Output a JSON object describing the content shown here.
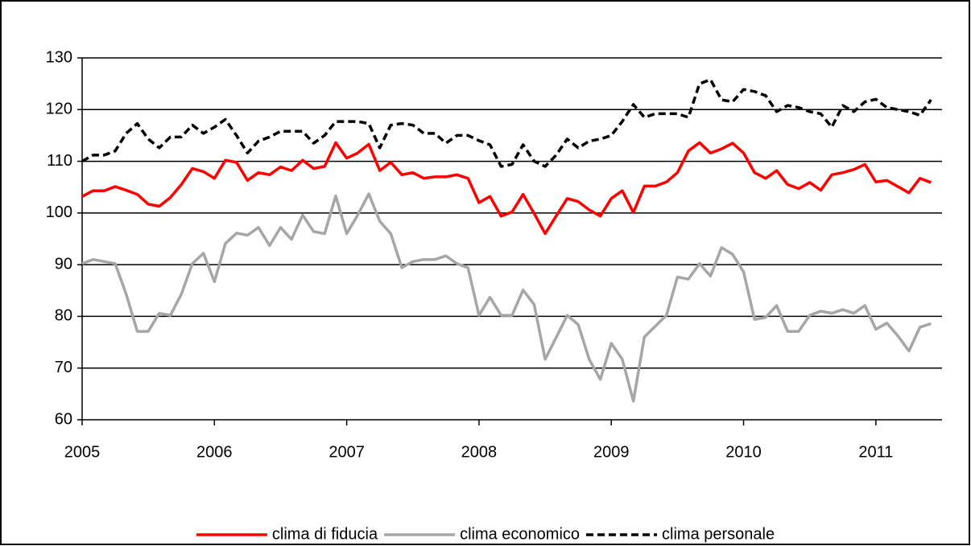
{
  "chart_data": {
    "type": "line",
    "x": [
      2005,
      2005.083,
      2005.167,
      2005.25,
      2005.333,
      2005.417,
      2005.5,
      2005.583,
      2005.667,
      2005.75,
      2005.833,
      2005.917,
      2006,
      2006.083,
      2006.167,
      2006.25,
      2006.333,
      2006.417,
      2006.5,
      2006.583,
      2006.667,
      2006.75,
      2006.833,
      2006.917,
      2007,
      2007.083,
      2007.167,
      2007.25,
      2007.333,
      2007.417,
      2007.5,
      2007.583,
      2007.667,
      2007.75,
      2007.833,
      2007.917,
      2008,
      2008.083,
      2008.167,
      2008.25,
      2008.333,
      2008.417,
      2008.5,
      2008.583,
      2008.667,
      2008.75,
      2008.833,
      2008.917,
      2009,
      2009.083,
      2009.167,
      2009.25,
      2009.333,
      2009.417,
      2009.5,
      2009.583,
      2009.667,
      2009.75,
      2009.833,
      2009.917,
      2010,
      2010.083,
      2010.167,
      2010.25,
      2010.333,
      2010.417,
      2010.5,
      2010.583,
      2010.667,
      2010.75,
      2010.833,
      2010.917,
      2011,
      2011.083,
      2011.167,
      2011.25,
      2011.333,
      2011.417
    ],
    "series": [
      {
        "name": "clima di fiducia",
        "color": "#ff0000",
        "style": "solid",
        "values": [
          103.2,
          104.3,
          104.3,
          105.1,
          104.4,
          103.6,
          101.7,
          101.3,
          103.0,
          105.5,
          108.6,
          108.0,
          106.7,
          110.2,
          109.8,
          106.3,
          107.8,
          107.4,
          108.9,
          108.2,
          110.2,
          108.6,
          109.0,
          113.6,
          110.6,
          111.6,
          113.3,
          108.2,
          109.8,
          107.4,
          107.8,
          106.7,
          107.0,
          107.0,
          107.4,
          106.7,
          102.0,
          103.2,
          99.4,
          100.2,
          103.6,
          99.9,
          96.0,
          99.4,
          102.8,
          102.2,
          100.6,
          99.4,
          102.8,
          104.3,
          100.1,
          105.2,
          105.2,
          106.0,
          107.8,
          112.0,
          113.6,
          111.6,
          112.4,
          113.5,
          111.6,
          107.8,
          106.7,
          108.2,
          105.5,
          104.7,
          105.9,
          104.4,
          107.4,
          107.8,
          108.4,
          109.4,
          106.0,
          106.3,
          105.1,
          103.9,
          106.7,
          105.9
        ]
      },
      {
        "name": "clima economico",
        "color": "#a6a6a6",
        "style": "solid",
        "values": [
          90.2,
          91.0,
          90.6,
          90.2,
          84.3,
          77.1,
          77.1,
          80.6,
          80.2,
          84.3,
          90.2,
          92.2,
          86.7,
          94.1,
          96.1,
          95.7,
          97.2,
          93.7,
          97.2,
          94.9,
          99.6,
          96.4,
          96.0,
          103.3,
          96.0,
          99.6,
          103.7,
          98.4,
          96.0,
          89.4,
          90.6,
          91.0,
          91.0,
          91.7,
          90.2,
          89.4,
          80.2,
          83.7,
          80.2,
          80.2,
          85.1,
          82.3,
          71.7,
          75.9,
          80.2,
          78.4,
          71.7,
          67.8,
          74.8,
          71.7,
          63.6,
          76.0,
          78.1,
          80.2,
          87.6,
          87.2,
          90.2,
          87.8,
          93.3,
          92.0,
          88.6,
          79.4,
          79.8,
          82.1,
          77.1,
          77.1,
          80.2,
          81.0,
          80.6,
          81.3,
          80.6,
          82.1,
          77.5,
          78.7,
          76.2,
          73.3,
          77.9,
          78.6
        ]
      },
      {
        "name": "clima personale",
        "color": "#000000",
        "style": "dashed",
        "values": [
          110.0,
          111.2,
          111.2,
          112.0,
          115.4,
          117.3,
          114.3,
          112.6,
          114.7,
          114.7,
          117.0,
          115.4,
          116.6,
          118.1,
          115.0,
          111.6,
          113.9,
          114.7,
          115.8,
          115.8,
          115.8,
          113.5,
          115.0,
          117.7,
          117.7,
          117.7,
          117.3,
          112.6,
          117.0,
          117.3,
          117.0,
          115.4,
          115.4,
          113.5,
          115.0,
          115.0,
          114.0,
          113.2,
          109.0,
          109.4,
          113.2,
          110.0,
          109.0,
          111.2,
          114.3,
          112.6,
          113.9,
          114.3,
          115.0,
          117.7,
          121.0,
          118.5,
          119.2,
          119.2,
          119.2,
          118.5,
          125.0,
          125.8,
          121.9,
          121.5,
          123.9,
          123.5,
          122.7,
          119.6,
          120.8,
          120.4,
          119.6,
          119.2,
          116.6,
          120.8,
          119.6,
          121.5,
          122.0,
          120.4,
          120.0,
          119.6,
          118.9,
          121.9
        ]
      }
    ],
    "xlim": [
      2005,
      2011.5
    ],
    "xticks": [
      2005,
      2006,
      2007,
      2008,
      2009,
      2010,
      2011
    ],
    "ylim": [
      60,
      130
    ],
    "yticks": [
      60,
      70,
      80,
      90,
      100,
      110,
      120,
      130
    ],
    "grid": true,
    "legend": "bottom"
  }
}
